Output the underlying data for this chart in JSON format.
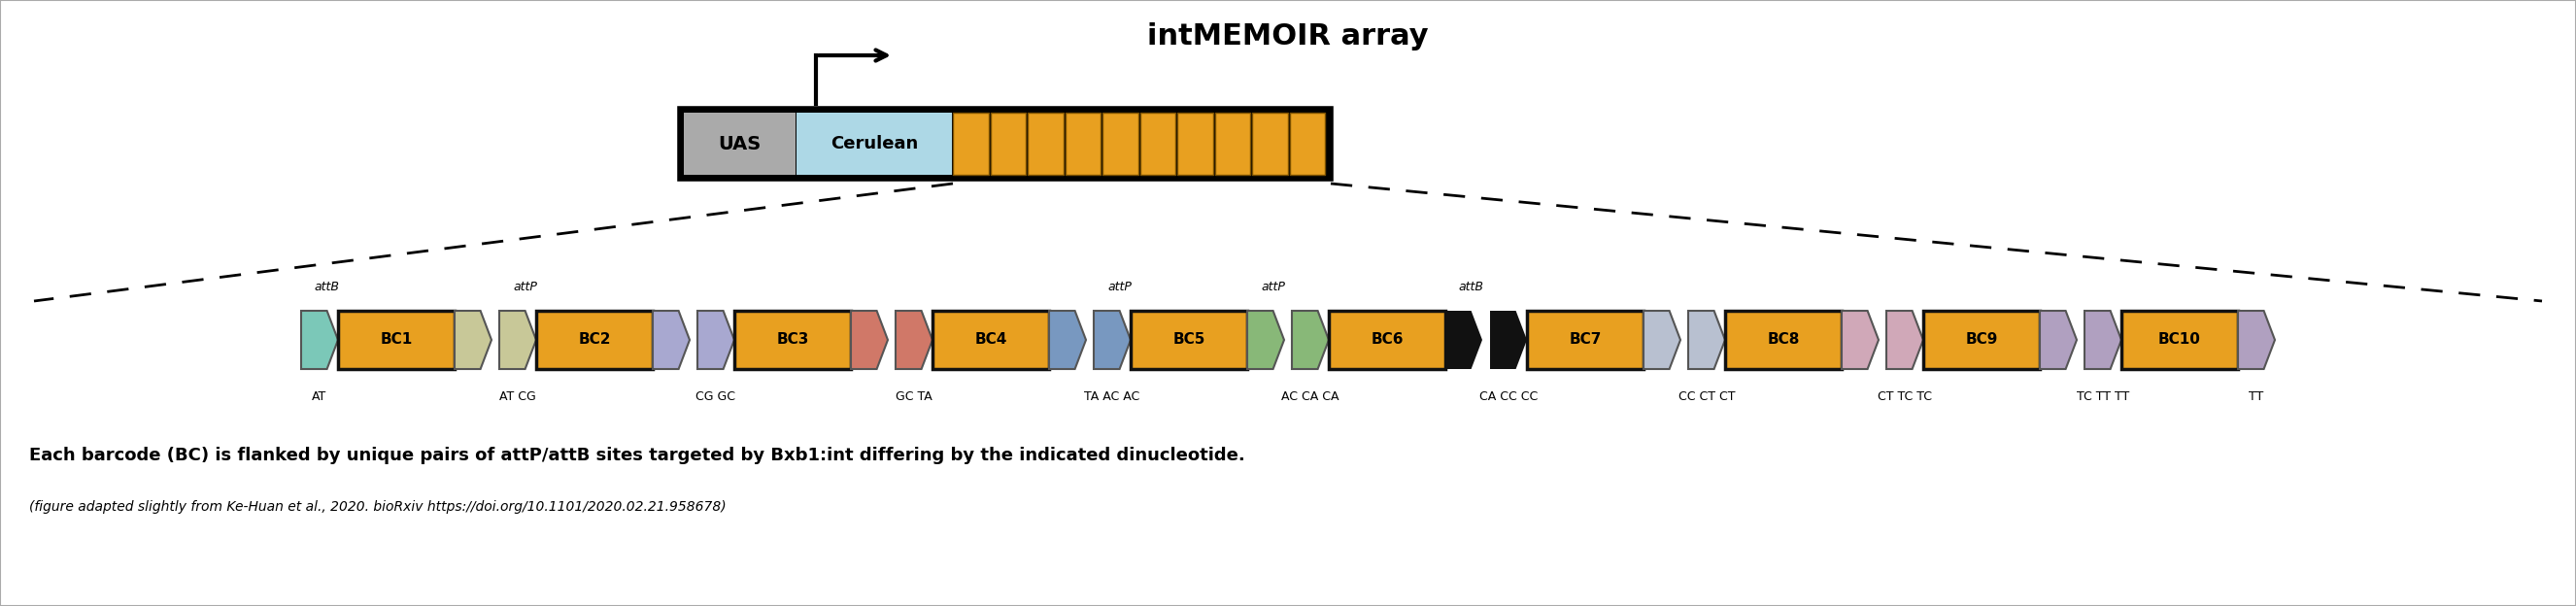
{
  "title": "intMEMOIR array",
  "fig_width": 26.52,
  "fig_height": 6.24,
  "bg": "#ffffff",
  "orange": "#E8A020",
  "barcodes": [
    {
      "name": "BC1",
      "lc": "#7BC8B8",
      "rc": "#C8C898"
    },
    {
      "name": "BC2",
      "lc": "#C8C898",
      "rc": "#A8A8D0"
    },
    {
      "name": "BC3",
      "lc": "#A8A8D0",
      "rc": "#D07868"
    },
    {
      "name": "BC4",
      "lc": "#D07868",
      "rc": "#7898C0"
    },
    {
      "name": "BC5",
      "lc": "#7898C0",
      "rc": "#88B878"
    },
    {
      "name": "BC6",
      "lc": "#88B878",
      "rc": "#111111"
    },
    {
      "name": "BC7",
      "lc": "#111111",
      "rc": "#B8C0D0"
    },
    {
      "name": "BC8",
      "lc": "#B8C0D0",
      "rc": "#D0A8B8"
    },
    {
      "name": "BC9",
      "lc": "#D0A8B8",
      "rc": "#B0A0C0"
    },
    {
      "name": "BC10",
      "lc": "#B0A0C0",
      "rc": "#B0A0C0"
    }
  ],
  "dinu_labels": [
    "AT",
    "AT CG",
    "CG GC",
    "GC TA",
    "TA AC AC",
    "AC CA CA",
    "CA CC CC",
    "CC CT CT",
    "CT TC TC",
    "TC TT TT",
    "TT"
  ],
  "att_info": [
    {
      "label": "attB",
      "bc": 0,
      "which": "left"
    },
    {
      "label": "attP",
      "bc": 1,
      "which": "left"
    },
    {
      "label": "attP",
      "bc": 4,
      "which": "left"
    },
    {
      "label": "attP",
      "bc": 4,
      "which": "right"
    },
    {
      "label": "attB",
      "bc": 5,
      "which": "right"
    }
  ],
  "bottom_text1": "Each barcode (BC) is flanked by unique pairs of attP/attB sites targeted by Bxb1:int differing by the indicated dinucleotide.",
  "bottom_text2": "(figure adapted slightly from Ke-Huan et al., 2020. bioRxiv https://doi.org/10.1101/2020.02.21.958678)"
}
